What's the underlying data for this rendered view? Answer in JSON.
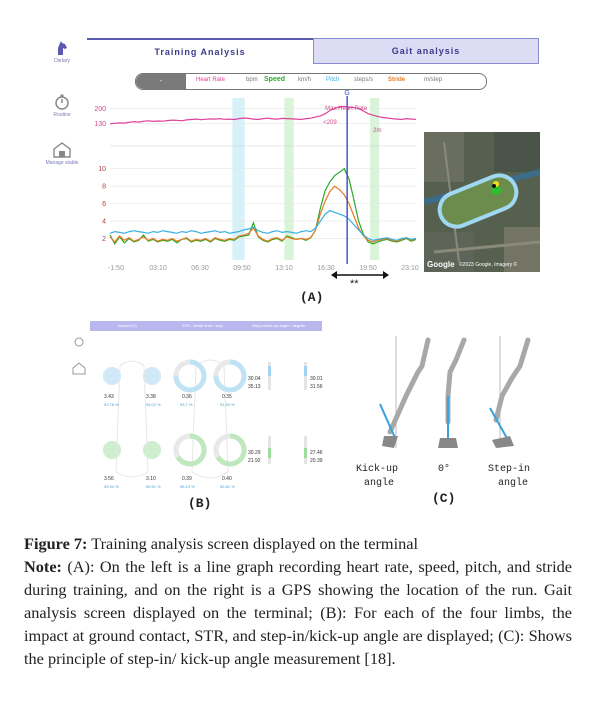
{
  "panel_a": {
    "sidebar": [
      {
        "label": "Dietary",
        "icon": "horse-head-icon"
      },
      {
        "label": "Routine",
        "icon": "stopwatch-icon"
      },
      {
        "label": "Manage stable",
        "icon": "stable-icon"
      }
    ],
    "tabs": [
      {
        "label": "Training Analysis",
        "active": true
      },
      {
        "label": "Gait analysis",
        "active": false
      }
    ],
    "legend": {
      "selector": "-",
      "items": [
        {
          "label": "Heart Rate",
          "unit": "bpm",
          "color": "#e0409a"
        },
        {
          "label": "Speed",
          "unit": "km/h",
          "color": "#2aa82a"
        },
        {
          "label": "Pitch",
          "unit": "steps/s",
          "color": "#38b0e0"
        },
        {
          "label": "Stride",
          "unit": "m/step",
          "color": "#e87a20"
        }
      ]
    },
    "marker_label": "G",
    "annotation_hr": "Max Heart Rate",
    "annotation_left": "<209",
    "annotation_right": "2m",
    "label": "(A)",
    "significance": "**",
    "map": {
      "google_label": "Google",
      "copyright": "©2023 Google, Imagery ©"
    }
  },
  "chart_data": {
    "type": "line",
    "x_tick_labels": [
      "-1:50",
      "03:10",
      "06:30",
      "09:50",
      "13:10",
      "16:30",
      "19:50",
      "23:10"
    ],
    "upper_y_ticks": [
      200,
      130
    ],
    "lower_y_ticks": [
      10,
      8,
      6,
      4,
      2
    ],
    "highlight_bands": [
      {
        "color": "#d6f1f7",
        "from": 0.4,
        "to": 0.44
      },
      {
        "color": "#d9f4d9",
        "from": 0.57,
        "to": 0.6
      },
      {
        "color": "#d9f4d9",
        "from": 0.85,
        "to": 0.88
      }
    ],
    "series": [
      {
        "name": "Heart Rate",
        "color": "#e0409a",
        "values": [
          128,
          130,
          132,
          131,
          135,
          138,
          136,
          140,
          142,
          139,
          141,
          140,
          143,
          145,
          144,
          142,
          146,
          148,
          150,
          147,
          149,
          151,
          150,
          152,
          149,
          150,
          148,
          152,
          155,
          153,
          150,
          148,
          152,
          154,
          151,
          150,
          153,
          152,
          151,
          150,
          148,
          152,
          154,
          160,
          165,
          175,
          190,
          200,
          208,
          209,
          206,
          204,
          200,
          188,
          175,
          168,
          162,
          158,
          155,
          152,
          150,
          148,
          152,
          150,
          149
        ]
      },
      {
        "name": "Speed",
        "color": "#2aa82a",
        "values": [
          2.4,
          1.4,
          2.2,
          1.5,
          2.0,
          1.6,
          1.8,
          2.4,
          1.7,
          1.9,
          1.6,
          1.8,
          1.7,
          1.9,
          1.5,
          1.9,
          2.0,
          1.6,
          1.8,
          1.7,
          1.9,
          1.6,
          2.0,
          1.8,
          1.7,
          1.9,
          1.8,
          2.2,
          2.3,
          2.4,
          3.8,
          2.2,
          1.8,
          1.6,
          1.9,
          2.0,
          1.7,
          2.3,
          2.1,
          1.9,
          2.0,
          1.8,
          2.1,
          3.0,
          5.5,
          7.5,
          8.5,
          9.2,
          9.6,
          10.0,
          8.8,
          6.5,
          4.0,
          2.5,
          1.6,
          1.4,
          1.6,
          1.8,
          1.9,
          1.7,
          1.6,
          1.8,
          2.0,
          1.7,
          1.9
        ]
      },
      {
        "name": "Stride",
        "color": "#e87a20",
        "values": [
          2.2,
          1.6,
          2.3,
          1.8,
          2.1,
          1.7,
          1.9,
          2.2,
          1.8,
          2.0,
          1.7,
          1.9,
          1.8,
          2.0,
          1.7,
          1.9,
          2.1,
          1.7,
          1.9,
          1.8,
          2.0,
          1.7,
          2.1,
          1.9,
          1.8,
          2.0,
          1.9,
          2.3,
          2.4,
          2.6,
          3.2,
          2.3,
          1.9,
          1.7,
          2.0,
          2.1,
          1.8,
          2.2,
          2.0,
          1.9,
          2.0,
          1.9,
          2.1,
          3.0,
          4.8,
          6.3,
          7.4,
          8.0,
          7.6,
          7.0,
          6.0,
          4.6,
          3.2,
          2.3,
          1.8,
          1.6,
          1.8,
          1.9,
          2.0,
          1.8,
          1.7,
          1.9,
          2.1,
          1.8,
          2.0
        ]
      },
      {
        "name": "Pitch",
        "color": "#38b0e0",
        "values": [
          2.6,
          2.8,
          2.7,
          2.6,
          2.8,
          2.9,
          2.8,
          2.7,
          2.6,
          2.8,
          2.7,
          2.9,
          2.8,
          2.7,
          2.6,
          2.8,
          2.7,
          2.9,
          2.8,
          2.6,
          2.7,
          2.8,
          2.9,
          2.7,
          2.8,
          2.6,
          2.7,
          2.8,
          3.0,
          3.1,
          3.3,
          2.9,
          2.7,
          2.6,
          2.8,
          2.9,
          2.7,
          2.8,
          2.7,
          2.6,
          2.8,
          2.9,
          2.8,
          3.2,
          4.0,
          4.8,
          5.2,
          5.0,
          4.8,
          4.6,
          4.2,
          3.6,
          3.0,
          2.4,
          2.0,
          1.8,
          1.9,
          2.0,
          2.1,
          1.9,
          1.8,
          2.0,
          2.1,
          1.9,
          2.0
        ]
      }
    ]
  },
  "panel_b": {
    "label": "(B)",
    "headers": [
      "Impact (G)",
      "STR - stride time / step",
      "Step-in/kick-up angle / degree"
    ],
    "impact": [
      {
        "value": "3.43",
        "pct": "93.78 %"
      },
      {
        "value": "3.38",
        "pct": "96.02 %"
      },
      {
        "value": "3.56",
        "pct": "93.94 %"
      },
      {
        "value": "3.10",
        "pct": "90.51 %"
      }
    ],
    "str": [
      {
        "value": "0.36",
        "pct": "93.7 %"
      },
      {
        "value": "0.35",
        "pct": "91.90 %"
      },
      {
        "value": "0.39",
        "pct": "96.13 %"
      },
      {
        "value": "0.40",
        "pct": "92.81 %"
      }
    ],
    "angles": [
      {
        "top": "30.04",
        "bottom": "35.13"
      },
      {
        "top": "30.01",
        "bottom": "31.56"
      },
      {
        "top": "30.29",
        "bottom": "21.92"
      },
      {
        "top": "27.46",
        "bottom": "20.39"
      }
    ]
  },
  "panel_c": {
    "label": "(C)",
    "kick_up_line1": "Kick-up",
    "kick_up_line2": "angle",
    "zero": "0°",
    "step_in_line1": "Step-in",
    "step_in_line2": "angle"
  },
  "caption": {
    "figure_label": "Figure 7:",
    "figure_text": " Training analysis screen displayed on the terminal",
    "note_label": "Note:",
    "note_text": " (A): On the left is a line graph recording heart rate, speed, pitch, and stride during training, and on the right is a GPS showing the location of the run. Gait analysis screen displayed on the terminal; (B): For each of the four limbs, the impact at ground contact, STR, and step-in/kick-up angle are displayed; (C): Shows the principle of step-in/ kick-up angle measurement [18]."
  }
}
